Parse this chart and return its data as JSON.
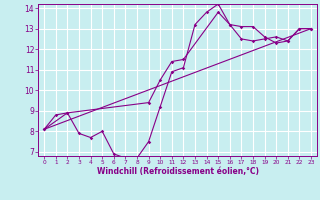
{
  "xlabel": "Windchill (Refroidissement éolien,°C)",
  "background_color": "#c8eef0",
  "grid_color": "#ffffff",
  "line_color": "#880088",
  "xlim": [
    -0.5,
    23.5
  ],
  "ylim": [
    6.8,
    14.2
  ],
  "xticks": [
    0,
    1,
    2,
    3,
    4,
    5,
    6,
    7,
    8,
    9,
    10,
    11,
    12,
    13,
    14,
    15,
    16,
    17,
    18,
    19,
    20,
    21,
    22,
    23
  ],
  "yticks": [
    7,
    8,
    9,
    10,
    11,
    12,
    13,
    14
  ],
  "series1_x": [
    0,
    1,
    2,
    3,
    4,
    5,
    6,
    7,
    8,
    9,
    10,
    11,
    12,
    13,
    14,
    15,
    16,
    17,
    18,
    19,
    20,
    21,
    22,
    23
  ],
  "series1_y": [
    8.1,
    8.8,
    8.9,
    7.9,
    7.7,
    8.0,
    6.9,
    6.7,
    6.7,
    7.5,
    9.2,
    10.9,
    11.1,
    13.2,
    13.8,
    14.2,
    13.2,
    13.1,
    13.1,
    12.6,
    12.3,
    12.4,
    13.0,
    13.0
  ],
  "series2_x": [
    0,
    2,
    9,
    10,
    11,
    12,
    15,
    16,
    17,
    18,
    19,
    20,
    21,
    22,
    23
  ],
  "series2_y": [
    8.1,
    8.9,
    9.4,
    10.5,
    11.4,
    11.5,
    13.8,
    13.2,
    12.5,
    12.4,
    12.5,
    12.6,
    12.4,
    13.0,
    13.0
  ],
  "series3_x": [
    0,
    23
  ],
  "series3_y": [
    8.1,
    13.0
  ]
}
